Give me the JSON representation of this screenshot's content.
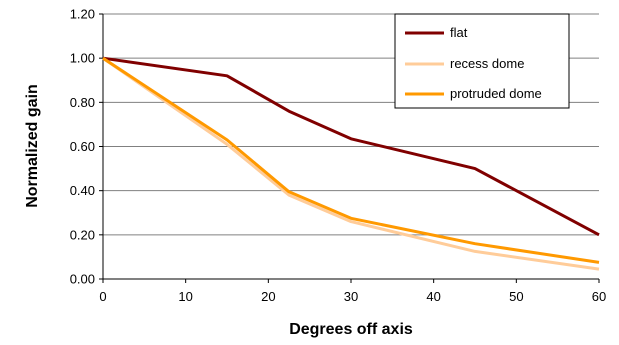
{
  "chart_data": {
    "type": "line",
    "title": "",
    "xlabel": "Degrees off axis",
    "ylabel": "Normalized gain",
    "xlim": [
      0,
      60
    ],
    "ylim": [
      0,
      1.2
    ],
    "xticks": [
      "0",
      "10",
      "20",
      "30",
      "40",
      "50",
      "60"
    ],
    "yticks": [
      "0.00",
      "0.20",
      "0.40",
      "0.60",
      "0.80",
      "1.00",
      "1.20"
    ],
    "grid": "horizontal",
    "legend": "top-right",
    "series": [
      {
        "name": "flat",
        "color": "#800000",
        "points": [
          [
            0,
            1.0
          ],
          [
            15,
            0.92
          ],
          [
            22.5,
            0.76
          ],
          [
            30,
            0.635
          ],
          [
            45,
            0.5
          ],
          [
            60,
            0.2
          ]
        ]
      },
      {
        "name": "recess dome",
        "color": "#FFCC99",
        "points": [
          [
            0,
            1.0
          ],
          [
            15,
            0.61
          ],
          [
            22.5,
            0.38
          ],
          [
            30,
            0.26
          ],
          [
            45,
            0.125
          ],
          [
            60,
            0.045
          ]
        ]
      },
      {
        "name": "protruded dome",
        "color": "#FF9900",
        "points": [
          [
            0,
            1.0
          ],
          [
            15,
            0.63
          ],
          [
            22.5,
            0.395
          ],
          [
            30,
            0.275
          ],
          [
            45,
            0.16
          ],
          [
            60,
            0.075
          ]
        ]
      }
    ]
  }
}
